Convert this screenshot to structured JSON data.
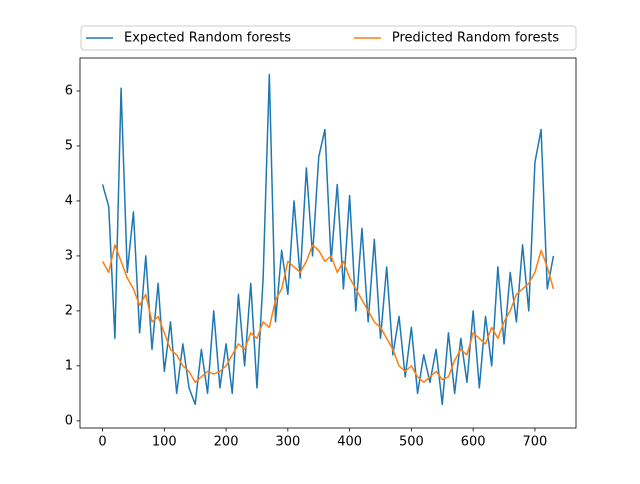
{
  "chart_data": {
    "type": "line",
    "x": [
      0,
      10,
      20,
      30,
      40,
      50,
      60,
      70,
      80,
      90,
      100,
      110,
      120,
      130,
      140,
      150,
      160,
      170,
      180,
      190,
      200,
      210,
      220,
      230,
      240,
      250,
      260,
      270,
      280,
      290,
      300,
      310,
      320,
      330,
      340,
      350,
      360,
      370,
      380,
      390,
      400,
      410,
      420,
      430,
      440,
      450,
      460,
      470,
      480,
      490,
      500,
      510,
      520,
      530,
      540,
      550,
      560,
      570,
      580,
      590,
      600,
      610,
      620,
      630,
      640,
      650,
      660,
      670,
      680,
      690,
      700,
      710,
      720,
      730
    ],
    "series": [
      {
        "name": "Expected Random forests",
        "color": "#1f77b4",
        "values": [
          4.3,
          3.9,
          1.5,
          6.05,
          2.7,
          3.8,
          1.6,
          3.0,
          1.3,
          2.5,
          0.9,
          1.8,
          0.5,
          1.4,
          0.6,
          0.3,
          1.3,
          0.5,
          2.0,
          0.6,
          1.4,
          0.5,
          2.3,
          1.0,
          2.5,
          0.6,
          2.6,
          6.3,
          1.8,
          3.1,
          2.3,
          4.0,
          2.6,
          4.6,
          3.0,
          4.8,
          5.3,
          2.9,
          4.3,
          2.4,
          4.1,
          2.0,
          3.5,
          1.8,
          3.3,
          1.5,
          2.8,
          1.2,
          1.9,
          0.8,
          1.7,
          0.5,
          1.2,
          0.7,
          1.3,
          0.3,
          1.6,
          0.5,
          1.5,
          0.7,
          2.0,
          0.6,
          1.9,
          1.0,
          2.8,
          1.4,
          2.7,
          1.8,
          3.2,
          2.0,
          4.7,
          5.3,
          2.4,
          3.0
        ]
      },
      {
        "name": "Predicted Random forests",
        "color": "#ff7f0e",
        "values": [
          2.9,
          2.7,
          3.2,
          2.9,
          2.6,
          2.4,
          2.1,
          2.3,
          1.8,
          1.9,
          1.6,
          1.3,
          1.2,
          1.0,
          0.9,
          0.7,
          0.8,
          0.9,
          0.85,
          0.9,
          1.0,
          1.2,
          1.4,
          1.3,
          1.6,
          1.5,
          1.8,
          1.7,
          2.2,
          2.4,
          2.9,
          2.8,
          2.7,
          2.9,
          3.2,
          3.1,
          2.9,
          3.0,
          2.7,
          2.9,
          2.6,
          2.4,
          2.2,
          2.0,
          1.8,
          1.7,
          1.5,
          1.3,
          1.0,
          0.9,
          1.0,
          0.8,
          0.7,
          0.8,
          0.9,
          0.75,
          0.8,
          1.1,
          1.3,
          1.2,
          1.6,
          1.5,
          1.4,
          1.7,
          1.5,
          1.8,
          2.0,
          2.3,
          2.4,
          2.5,
          2.7,
          3.1,
          2.8,
          2.4
        ]
      }
    ],
    "xlim": [
      -36.5,
      766.5
    ],
    "ylim": [
      -0.13,
      6.6
    ],
    "xticks": [
      0,
      100,
      200,
      300,
      400,
      500,
      600,
      700
    ],
    "yticks": [
      0,
      1,
      2,
      3,
      4,
      5,
      6
    ],
    "grid": false,
    "legend_loc": "above"
  }
}
